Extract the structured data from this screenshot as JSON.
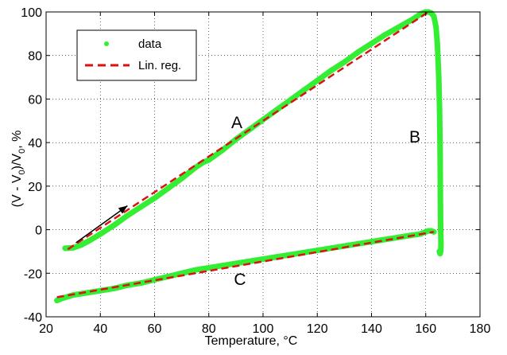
{
  "colors": {
    "data": "#33ee33",
    "fit": "#dd1111",
    "axes": "#000000"
  },
  "chart_data": {
    "type": "line",
    "title": "",
    "xlabel": "Temperature, °C",
    "ylabel": "(V - V0)/V0, %",
    "ylabel_parts": {
      "open": "(V - V",
      "sub1": "0",
      "mid": ")/V",
      "sub2": "0",
      "close": ", %"
    },
    "xlim": [
      20,
      180
    ],
    "ylim": [
      -40,
      100
    ],
    "xticks": [
      20,
      40,
      60,
      80,
      100,
      120,
      140,
      160,
      180
    ],
    "yticks": [
      -40,
      -20,
      0,
      20,
      40,
      60,
      80,
      100
    ],
    "grid": true,
    "legend_placement": "top-left",
    "series": [
      {
        "name": "data",
        "style": "markers",
        "segments": [
          {
            "label": "A",
            "x": [
              27,
              30,
              33,
              36,
              40,
              45,
              50,
              55,
              60,
              65,
              70,
              75,
              78,
              80,
              85,
              90,
              95,
              100,
              105,
              110,
              115,
              120,
              125,
              130,
              135,
              140,
              145,
              150,
              155,
              158,
              160
            ],
            "y": [
              -8.5,
              -8.3,
              -7,
              -5,
              -2,
              2,
              6.5,
              10.5,
              14.5,
              19,
              23.5,
              28.5,
              31,
              32,
              36.5,
              41.5,
              46,
              50.5,
              55,
              59.5,
              64,
              68.5,
              73,
              77,
              81.5,
              85.5,
              89.5,
              93,
              96.5,
              99,
              100
            ]
          },
          {
            "label": "B",
            "x": [
              160,
              161,
              162,
              163,
              163.8,
              164.3,
              164.8,
              165.1,
              165.3,
              165.4,
              165.5,
              165.6,
              165.6,
              165.5,
              165.3,
              165
            ],
            "y": [
              100,
              100,
              99.5,
              98,
              93,
              85,
              70,
              55,
              35,
              15,
              0,
              -5,
              -8,
              -10,
              -11,
              -10
            ]
          },
          {
            "label": "C",
            "x": [
              163,
              162,
              161,
              160,
              158,
              155,
              150,
              145,
              140,
              135,
              130,
              125,
              120,
              115,
              110,
              105,
              100,
              95,
              90,
              85,
              80,
              75,
              70,
              65,
              60,
              55,
              50,
              45,
              40,
              35,
              30,
              26,
              24
            ],
            "y": [
              -1,
              -0.5,
              -0.5,
              -1,
              -2,
              -2.5,
              -3.5,
              -4.5,
              -5.5,
              -6.5,
              -7.5,
              -8.5,
              -9.5,
              -10.5,
              -11.5,
              -12.5,
              -13.5,
              -14.5,
              -15.5,
              -16.5,
              -17.5,
              -18.5,
              -20,
              -21.5,
              -23,
              -24.5,
              -25.5,
              -27,
              -28,
              -29,
              -30,
              -31.5,
              -32.5
            ]
          }
        ]
      },
      {
        "name": "Lin. reg.",
        "style": "dashed",
        "segments": [
          {
            "x": [
              28,
              161
            ],
            "y": [
              -9,
              100
            ]
          },
          {
            "x": [
              24,
              163
            ],
            "y": [
              -31,
              -1
            ]
          }
        ]
      }
    ],
    "annotations": [
      {
        "text": "A",
        "x": 90,
        "y": 44
      },
      {
        "text": "B",
        "x": 156,
        "y": 38
      },
      {
        "text": "C",
        "x": 90,
        "y": -25
      }
    ],
    "arrow": {
      "x1": 31,
      "y1": -6,
      "x2": 50,
      "y2": 11
    }
  }
}
